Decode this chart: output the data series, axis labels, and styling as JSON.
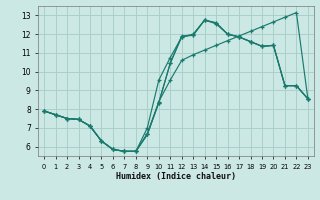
{
  "xlabel": "Humidex (Indice chaleur)",
  "bg_color": "#cce8e4",
  "grid_color": "#aacfcb",
  "line_color": "#1a7a6e",
  "xlim": [
    -0.5,
    23.5
  ],
  "ylim": [
    5.5,
    13.5
  ],
  "xticks": [
    0,
    1,
    2,
    3,
    4,
    5,
    6,
    7,
    8,
    9,
    10,
    11,
    12,
    13,
    14,
    15,
    16,
    17,
    18,
    19,
    20,
    21,
    22,
    23
  ],
  "yticks": [
    6,
    7,
    8,
    9,
    10,
    11,
    12,
    13
  ],
  "series": [
    {
      "x": [
        0,
        1,
        2,
        3,
        4,
        5,
        6,
        7,
        8,
        9,
        10,
        11,
        12,
        13,
        14,
        15,
        16,
        17,
        18,
        19,
        20,
        21,
        22,
        23
      ],
      "y": [
        7.9,
        7.7,
        7.5,
        7.45,
        7.1,
        6.3,
        5.85,
        5.75,
        5.75,
        6.7,
        8.4,
        9.55,
        10.6,
        10.9,
        11.15,
        11.4,
        11.65,
        11.9,
        12.15,
        12.4,
        12.65,
        12.9,
        13.15,
        8.55
      ]
    },
    {
      "x": [
        0,
        1,
        2,
        3,
        4,
        5,
        6,
        7,
        8,
        9,
        10,
        11,
        12,
        13,
        14,
        15,
        16,
        17,
        18,
        19,
        20,
        21,
        22,
        23
      ],
      "y": [
        7.9,
        7.7,
        7.5,
        7.45,
        7.1,
        6.3,
        5.85,
        5.75,
        5.75,
        6.65,
        8.35,
        10.45,
        11.9,
        11.95,
        12.75,
        12.6,
        12.0,
        11.85,
        11.6,
        11.35,
        11.4,
        9.25,
        9.25,
        8.55
      ]
    },
    {
      "x": [
        0,
        1,
        2,
        3,
        4,
        5,
        6,
        7,
        8,
        9,
        10,
        11,
        12,
        13,
        14,
        15,
        16,
        17,
        18,
        19,
        20,
        21,
        22,
        23
      ],
      "y": [
        7.9,
        7.7,
        7.5,
        7.45,
        7.1,
        6.3,
        5.85,
        5.75,
        5.75,
        7.0,
        9.55,
        10.75,
        11.85,
        12.0,
        12.75,
        12.55,
        12.0,
        11.85,
        11.6,
        11.35,
        11.4,
        9.25,
        9.25,
        8.55
      ]
    },
    {
      "x": [
        0,
        1,
        2,
        3,
        4,
        5,
        6,
        7,
        8,
        9,
        10,
        11,
        12,
        13,
        14,
        15,
        16,
        17,
        18,
        19,
        20,
        21,
        22,
        23
      ],
      "y": [
        7.9,
        7.7,
        7.5,
        7.45,
        7.1,
        6.3,
        5.85,
        5.75,
        5.75,
        6.65,
        8.35,
        10.45,
        11.85,
        11.95,
        12.75,
        12.6,
        12.0,
        11.85,
        11.6,
        11.35,
        11.4,
        9.25,
        9.25,
        8.55
      ]
    }
  ]
}
